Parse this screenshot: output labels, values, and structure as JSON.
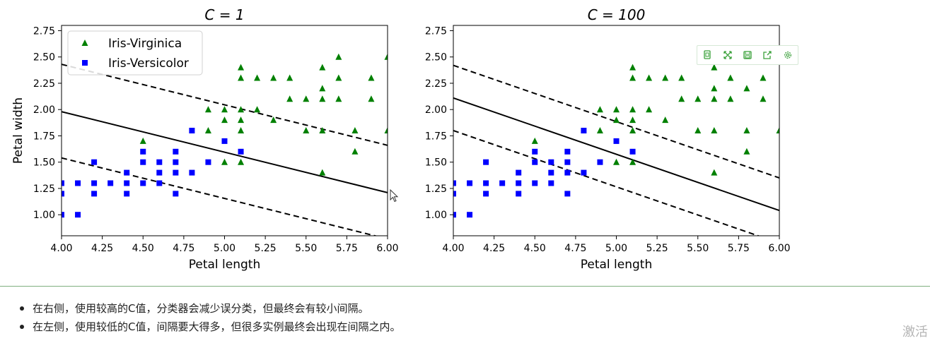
{
  "chart_data": [
    {
      "type": "scatter",
      "title": "C = 1",
      "xlabel": "Petal length",
      "ylabel": "Petal width",
      "xlim": [
        4.0,
        6.0
      ],
      "ylim": [
        0.8,
        2.8
      ],
      "xticks": [
        "4.00",
        "4.25",
        "4.50",
        "4.75",
        "5.00",
        "5.25",
        "5.50",
        "5.75",
        "6.00"
      ],
      "yticks": [
        "1.00",
        "1.25",
        "1.50",
        "1.75",
        "2.00",
        "2.25",
        "2.50",
        "2.75"
      ],
      "legend": {
        "position": "top-left",
        "entries": [
          "Iris-Virginica",
          "Iris-Versicolor"
        ]
      },
      "series": [
        {
          "name": "Iris-Virginica",
          "marker": "triangle",
          "color": "#008000",
          "points": [
            [
              4.5,
              1.7
            ],
            [
              4.9,
              1.8
            ],
            [
              4.9,
              2.0
            ],
            [
              5.0,
              2.0
            ],
            [
              5.0,
              1.9
            ],
            [
              5.0,
              1.5
            ],
            [
              5.1,
              2.4
            ],
            [
              5.1,
              2.3
            ],
            [
              5.1,
              2.0
            ],
            [
              5.1,
              1.9
            ],
            [
              5.1,
              1.8
            ],
            [
              5.1,
              1.5
            ],
            [
              5.2,
              2.3
            ],
            [
              5.2,
              2.0
            ],
            [
              5.3,
              2.3
            ],
            [
              5.3,
              1.9
            ],
            [
              5.4,
              2.3
            ],
            [
              5.4,
              2.1
            ],
            [
              5.5,
              2.1
            ],
            [
              5.5,
              1.8
            ],
            [
              5.6,
              2.4
            ],
            [
              5.6,
              2.2
            ],
            [
              5.6,
              2.1
            ],
            [
              5.6,
              1.8
            ],
            [
              5.6,
              1.4
            ],
            [
              5.7,
              2.5
            ],
            [
              5.7,
              2.3
            ],
            [
              5.7,
              2.1
            ],
            [
              5.8,
              1.8
            ],
            [
              5.8,
              1.6
            ],
            [
              5.9,
              2.3
            ],
            [
              5.9,
              2.1
            ],
            [
              6.0,
              2.5
            ],
            [
              6.0,
              1.8
            ]
          ]
        },
        {
          "name": "Iris-Versicolor",
          "marker": "square",
          "color": "#0000ff",
          "points": [
            [
              4.0,
              1.3
            ],
            [
              4.0,
              1.2
            ],
            [
              4.0,
              1.0
            ],
            [
              4.1,
              1.3
            ],
            [
              4.1,
              1.0
            ],
            [
              4.2,
              1.5
            ],
            [
              4.2,
              1.3
            ],
            [
              4.2,
              1.2
            ],
            [
              4.3,
              1.3
            ],
            [
              4.4,
              1.4
            ],
            [
              4.4,
              1.3
            ],
            [
              4.4,
              1.2
            ],
            [
              4.5,
              1.6
            ],
            [
              4.5,
              1.5
            ],
            [
              4.5,
              1.3
            ],
            [
              4.6,
              1.5
            ],
            [
              4.6,
              1.4
            ],
            [
              4.6,
              1.3
            ],
            [
              4.7,
              1.6
            ],
            [
              4.7,
              1.5
            ],
            [
              4.7,
              1.4
            ],
            [
              4.7,
              1.2
            ],
            [
              4.8,
              1.8
            ],
            [
              4.8,
              1.4
            ],
            [
              4.9,
              1.5
            ],
            [
              5.0,
              1.7
            ],
            [
              5.1,
              1.6
            ]
          ]
        }
      ],
      "lines": [
        {
          "style": "solid",
          "y_at_xmin": 1.98,
          "y_at_xmax": 1.21
        },
        {
          "style": "dashed",
          "y_at_xmin": 2.43,
          "y_at_xmax": 1.66
        },
        {
          "style": "dashed",
          "y_at_xmin": 1.54,
          "y_at_xmax": 0.77
        }
      ]
    },
    {
      "type": "scatter",
      "title": "C = 100",
      "xlabel": "Petal length",
      "ylabel": "",
      "xlim": [
        4.0,
        6.0
      ],
      "ylim": [
        0.8,
        2.8
      ],
      "xticks": [
        "4.00",
        "4.25",
        "4.50",
        "4.75",
        "5.00",
        "5.25",
        "5.50",
        "5.75",
        "6.00"
      ],
      "yticks": [
        "1.00",
        "1.25",
        "1.50",
        "1.75",
        "2.00",
        "2.25",
        "2.50",
        "2.75"
      ],
      "series": [
        {
          "name": "Iris-Virginica",
          "marker": "triangle",
          "color": "#008000",
          "points": [
            [
              4.5,
              1.7
            ],
            [
              4.9,
              1.8
            ],
            [
              4.9,
              2.0
            ],
            [
              5.0,
              2.0
            ],
            [
              5.0,
              1.9
            ],
            [
              5.0,
              1.5
            ],
            [
              5.1,
              2.4
            ],
            [
              5.1,
              2.3
            ],
            [
              5.1,
              2.0
            ],
            [
              5.1,
              1.9
            ],
            [
              5.1,
              1.8
            ],
            [
              5.1,
              1.5
            ],
            [
              5.2,
              2.3
            ],
            [
              5.2,
              2.0
            ],
            [
              5.3,
              2.3
            ],
            [
              5.3,
              1.9
            ],
            [
              5.4,
              2.3
            ],
            [
              5.4,
              2.1
            ],
            [
              5.5,
              2.1
            ],
            [
              5.5,
              1.8
            ],
            [
              5.6,
              2.4
            ],
            [
              5.6,
              2.2
            ],
            [
              5.6,
              2.1
            ],
            [
              5.6,
              1.8
            ],
            [
              5.6,
              1.4
            ],
            [
              5.7,
              2.3
            ],
            [
              5.7,
              2.1
            ],
            [
              5.8,
              2.2
            ],
            [
              5.8,
              1.8
            ],
            [
              5.8,
              1.6
            ],
            [
              5.9,
              2.3
            ],
            [
              5.9,
              2.1
            ],
            [
              6.0,
              1.8
            ]
          ]
        },
        {
          "name": "Iris-Versicolor",
          "marker": "square",
          "color": "#0000ff",
          "points": [
            [
              4.0,
              1.3
            ],
            [
              4.0,
              1.2
            ],
            [
              4.0,
              1.0
            ],
            [
              4.1,
              1.3
            ],
            [
              4.1,
              1.0
            ],
            [
              4.2,
              1.5
            ],
            [
              4.2,
              1.3
            ],
            [
              4.2,
              1.2
            ],
            [
              4.3,
              1.3
            ],
            [
              4.4,
              1.4
            ],
            [
              4.4,
              1.3
            ],
            [
              4.4,
              1.2
            ],
            [
              4.5,
              1.6
            ],
            [
              4.5,
              1.5
            ],
            [
              4.5,
              1.3
            ],
            [
              4.6,
              1.5
            ],
            [
              4.6,
              1.4
            ],
            [
              4.6,
              1.3
            ],
            [
              4.7,
              1.6
            ],
            [
              4.7,
              1.5
            ],
            [
              4.7,
              1.4
            ],
            [
              4.7,
              1.2
            ],
            [
              4.8,
              1.8
            ],
            [
              4.8,
              1.4
            ],
            [
              4.9,
              1.5
            ],
            [
              5.0,
              1.7
            ],
            [
              5.1,
              1.6
            ]
          ]
        }
      ],
      "lines": [
        {
          "style": "solid",
          "y_at_xmin": 2.11,
          "y_at_xmax": 1.04
        },
        {
          "style": "dashed",
          "y_at_xmin": 2.42,
          "y_at_xmax": 1.35
        },
        {
          "style": "dashed",
          "y_at_xmin": 1.8,
          "y_at_xmax": 0.73
        }
      ]
    }
  ],
  "notes": [
    "在右侧，使用较高的C值，分类器会减少误分类，但最终会有较小间隔。",
    "在左侧，使用较低的C值，间隔要大得多，但很多实例最终会出现在间隔之内。"
  ],
  "toolbar": {
    "icons": [
      "copy-icon",
      "fullscreen-icon",
      "save-icon",
      "share-icon",
      "settings-icon"
    ],
    "color": "#3aa03a"
  },
  "watermark": "激活",
  "colors": {
    "separator": "#7fb07f",
    "virginica": "#008000",
    "versicolor": "#0000ff"
  }
}
